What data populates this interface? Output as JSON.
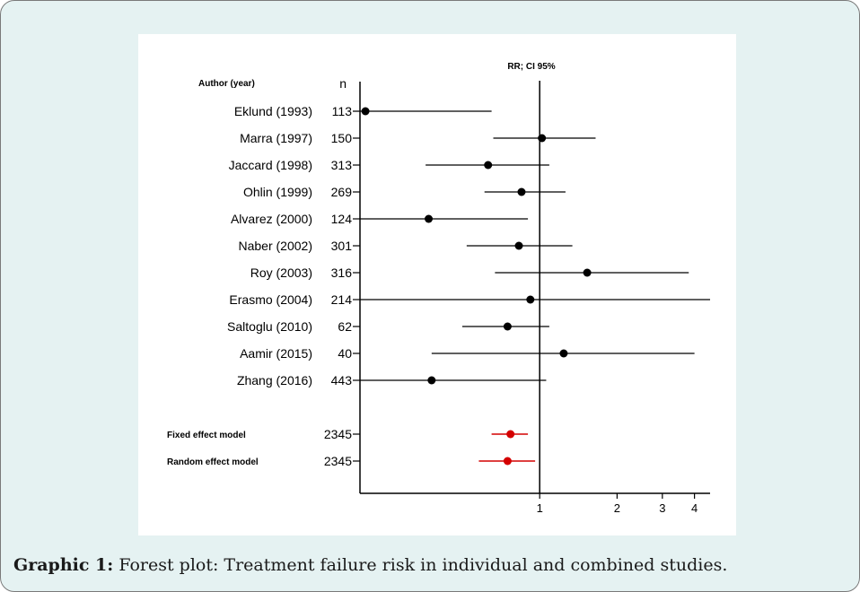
{
  "chart_data": {
    "type": "forest",
    "title": "RR; CI 95%",
    "col_author_header": "Author (year)",
    "col_n_header": "n",
    "x_scale": "log",
    "xlim": [
      0.2,
      4.6
    ],
    "x_ticks": [
      {
        "value": 1,
        "label": "1"
      },
      {
        "value": 2,
        "label": "2"
      },
      {
        "value": 3,
        "label": "3"
      },
      {
        "value": 4,
        "label": "4"
      }
    ],
    "reference_line": 1,
    "studies": [
      {
        "label": "Eklund (1993)",
        "n": "113",
        "rr": 0.21,
        "lower": 0.2,
        "upper": 0.65
      },
      {
        "label": "Marra (1997)",
        "n": "150",
        "rr": 1.02,
        "lower": 0.66,
        "upper": 1.65
      },
      {
        "label": "Jaccard (1998)",
        "n": "313",
        "rr": 0.63,
        "lower": 0.36,
        "upper": 1.09
      },
      {
        "label": "Ohlin (1999)",
        "n": "269",
        "rr": 0.85,
        "lower": 0.61,
        "upper": 1.26
      },
      {
        "label": "Alvarez (2000)",
        "n": "124",
        "rr": 0.37,
        "lower": 0.2,
        "upper": 0.9
      },
      {
        "label": "Naber (2002)",
        "n": "301",
        "rr": 0.83,
        "lower": 0.52,
        "upper": 1.34
      },
      {
        "label": "Roy (2003)",
        "n": "316",
        "rr": 1.53,
        "lower": 0.67,
        "upper": 3.8
      },
      {
        "label": "Erasmo (2004)",
        "n": "214",
        "rr": 0.92,
        "lower": 0.2,
        "upper": 4.6
      },
      {
        "label": "Saltoglu (2010)",
        "n": "62",
        "rr": 0.75,
        "lower": 0.5,
        "upper": 1.09
      },
      {
        "label": "Aamir (2015)",
        "n": "40",
        "rr": 1.24,
        "lower": 0.38,
        "upper": 4.0
      },
      {
        "label": "Zhang (2016)",
        "n": "443",
        "rr": 0.38,
        "lower": 0.2,
        "upper": 1.06
      }
    ],
    "pooled": [
      {
        "label": "Fixed effect model",
        "n": "2345",
        "rr": 0.77,
        "lower": 0.65,
        "upper": 0.9
      },
      {
        "label": "Random effect model",
        "n": "2345",
        "rr": 0.75,
        "lower": 0.58,
        "upper": 0.96
      }
    ],
    "colors": {
      "study": "#000000",
      "pooled": "#d40000",
      "axis": "#000000"
    }
  },
  "caption": {
    "label": "Graphic 1:",
    "text": " Forest plot: Treatment failure risk in individual and combined studies."
  }
}
